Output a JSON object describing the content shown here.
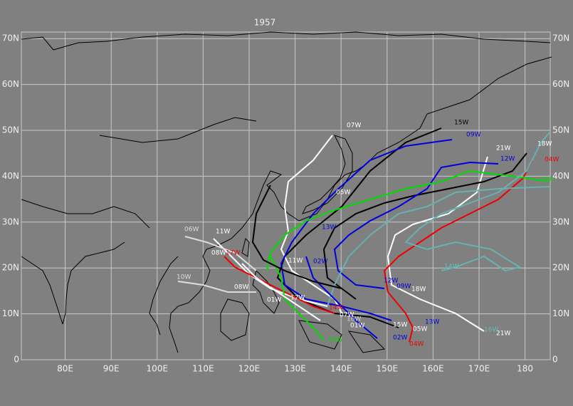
{
  "map": {
    "title": "1957",
    "lat_ticks": [
      {
        "value": 0,
        "label": "0"
      },
      {
        "value": 10,
        "label": "10N"
      },
      {
        "value": 20,
        "label": "20N"
      },
      {
        "value": 30,
        "label": "30N"
      },
      {
        "value": 40,
        "label": "40N"
      },
      {
        "value": 50,
        "label": "50N"
      },
      {
        "value": 60,
        "label": "60N"
      },
      {
        "value": 70,
        "label": "70N"
      }
    ],
    "lon_ticks": [
      {
        "value": 80,
        "label": "80E"
      },
      {
        "value": 90,
        "label": "90E"
      },
      {
        "value": 100,
        "label": "100E"
      },
      {
        "value": 110,
        "label": "110E"
      },
      {
        "value": 120,
        "label": "120E"
      },
      {
        "value": 130,
        "label": "130E"
      },
      {
        "value": 140,
        "label": "140E"
      },
      {
        "value": 150,
        "label": "150E"
      },
      {
        "value": 160,
        "label": "160E"
      },
      {
        "value": 170,
        "label": "170E"
      },
      {
        "value": 180,
        "label": "180"
      }
    ],
    "storm_labels": [
      "07W",
      "15W",
      "09W",
      "21W",
      "18W",
      "04W",
      "12W",
      "13W",
      "05W",
      "06W",
      "11W",
      "13W",
      "08W",
      "17W",
      "11W",
      "02W",
      "10W",
      "14W",
      "12W",
      "09W",
      "18W",
      "08W",
      "01W",
      "17W",
      "14W",
      "07W",
      "16W",
      "01W",
      "15W",
      "05W",
      "13W",
      "21W",
      "02W",
      "03W",
      "04W",
      "16W"
    ]
  }
}
